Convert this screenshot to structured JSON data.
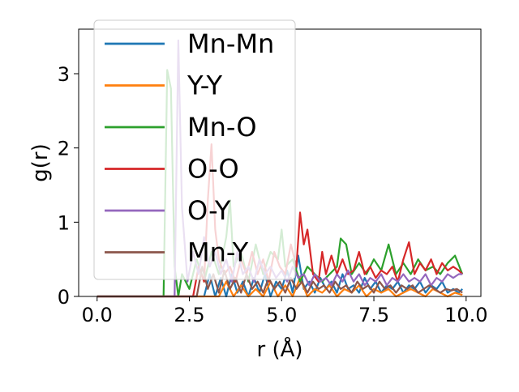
{
  "chart_data": {
    "type": "line",
    "title": "",
    "xlabel": "r (Å)",
    "ylabel": "g(r)",
    "xlim": [
      -0.5,
      10.4
    ],
    "ylim": [
      0,
      3.6
    ],
    "xticks": [
      0.0,
      2.5,
      5.0,
      7.5,
      10.0
    ],
    "xtick_labels": [
      "0.0",
      "2.5",
      "5.0",
      "7.5",
      "10.0"
    ],
    "yticks": [
      0,
      1,
      2,
      3
    ],
    "ytick_labels": [
      "0",
      "1",
      "2",
      "3"
    ],
    "grid": false,
    "legend_position": "upper-left",
    "series": [
      {
        "name": "Mn-Mn",
        "color": "#1f77b4",
        "x": [
          0,
          2.9,
          3.05,
          3.2,
          3.35,
          3.5,
          3.65,
          3.8,
          3.95,
          4.1,
          4.25,
          4.4,
          4.55,
          4.7,
          4.85,
          5.0,
          5.15,
          5.3,
          5.45,
          5.6,
          5.75,
          5.9,
          6.05,
          6.2,
          6.35,
          6.5,
          6.65,
          6.8,
          6.95,
          7.1,
          7.25,
          7.4,
          7.55,
          7.7,
          7.85,
          8.0,
          8.15,
          8.3,
          8.45,
          8.6,
          8.75,
          8.9,
          9.05,
          9.2,
          9.35,
          9.5,
          9.65,
          9.8,
          9.9
        ],
        "y": [
          0,
          0,
          0.3,
          0,
          0.25,
          0,
          0.3,
          0.05,
          0.2,
          0,
          0.25,
          0.05,
          0.3,
          0,
          0.2,
          0.1,
          0.35,
          0.05,
          0.55,
          0.1,
          0.2,
          0.05,
          0.25,
          0.1,
          0.2,
          0.05,
          0.3,
          0.1,
          0.15,
          0.05,
          0.25,
          0.1,
          0.2,
          0.05,
          0.15,
          0.1,
          0.2,
          0.05,
          0.15,
          0.1,
          0.2,
          0.05,
          0.15,
          0.1,
          0.2,
          0.05,
          0.1,
          0.05,
          0.1
        ]
      },
      {
        "name": "Y-Y",
        "color": "#ff7f0e",
        "x": [
          0,
          3.3,
          3.5,
          3.7,
          3.9,
          4.1,
          4.3,
          4.5,
          4.7,
          4.9,
          5.1,
          5.3,
          5.5,
          5.7,
          5.9,
          6.1,
          6.3,
          6.5,
          6.7,
          6.9,
          7.1,
          7.3,
          7.5,
          7.7,
          7.9,
          8.1,
          8.3,
          8.5,
          8.7,
          8.9,
          9.1,
          9.3,
          9.5,
          9.7,
          9.9
        ],
        "y": [
          0,
          0,
          0.2,
          0,
          0.15,
          0,
          0.1,
          0,
          0.2,
          0,
          0.15,
          0,
          0.25,
          0,
          0.1,
          0.05,
          0.15,
          0,
          0.1,
          0.05,
          0.15,
          0,
          0.1,
          0.05,
          0.1,
          0,
          0.05,
          0.1,
          0.05,
          0,
          0.1,
          0.05,
          0,
          0.05,
          0.02
        ]
      },
      {
        "name": "Mn-O",
        "color": "#2ca02c",
        "x": [
          0,
          1.8,
          1.9,
          2.0,
          2.1,
          2.2,
          2.3,
          2.5,
          2.7,
          2.9,
          3.1,
          3.3,
          3.5,
          3.6,
          3.7,
          3.9,
          4.1,
          4.3,
          4.5,
          4.7,
          4.9,
          5.0,
          5.1,
          5.3,
          5.5,
          5.7,
          5.9,
          6.1,
          6.3,
          6.5,
          6.6,
          6.75,
          6.9,
          7.1,
          7.3,
          7.5,
          7.7,
          7.9,
          8.1,
          8.3,
          8.5,
          8.7,
          8.9,
          9.1,
          9.3,
          9.5,
          9.7,
          9.9
        ],
        "y": [
          0,
          0,
          3.05,
          2.8,
          0.4,
          0,
          0.3,
          0.1,
          0.5,
          0.2,
          0.6,
          0.3,
          0.8,
          1.3,
          0.4,
          0.6,
          0.2,
          0.7,
          0.3,
          0.6,
          0.5,
          0.9,
          0.4,
          0.5,
          0.2,
          0.4,
          0.3,
          0.2,
          0.3,
          0.4,
          0.78,
          0.7,
          0.3,
          0.45,
          0.3,
          0.5,
          0.35,
          0.7,
          0.3,
          0.45,
          0.3,
          0.5,
          0.35,
          0.4,
          0.3,
          0.45,
          0.55,
          0.3
        ]
      },
      {
        "name": "O-O",
        "color": "#d62728",
        "x": [
          0,
          2.6,
          2.75,
          2.9,
          3.0,
          3.1,
          3.2,
          3.3,
          3.45,
          3.6,
          3.75,
          3.9,
          4.05,
          4.2,
          4.35,
          4.5,
          4.65,
          4.8,
          4.95,
          5.1,
          5.25,
          5.4,
          5.5,
          5.6,
          5.7,
          5.85,
          6.0,
          6.1,
          6.2,
          6.35,
          6.5,
          6.65,
          6.8,
          6.95,
          7.1,
          7.25,
          7.4,
          7.55,
          7.7,
          7.85,
          8.0,
          8.15,
          8.3,
          8.45,
          8.6,
          8.75,
          8.9,
          9.05,
          9.2,
          9.35,
          9.5,
          9.65,
          9.8,
          9.9
        ],
        "y": [
          0,
          0,
          0.4,
          0.2,
          1.3,
          2.05,
          0.9,
          0.5,
          0.3,
          0.4,
          0.2,
          0.5,
          0.3,
          0.6,
          0.3,
          0.5,
          0.2,
          0.6,
          0.4,
          0.3,
          0.7,
          0.4,
          1.13,
          0.7,
          0.9,
          0.3,
          0.2,
          0.6,
          0.3,
          0.55,
          0.3,
          0.5,
          0.3,
          0.35,
          0.6,
          0.3,
          0.4,
          0.25,
          0.35,
          0.3,
          0.4,
          0.2,
          0.5,
          0.73,
          0.3,
          0.45,
          0.35,
          0.5,
          0.3,
          0.45,
          0.35,
          0.4,
          0.35,
          0.3
        ]
      },
      {
        "name": "O-Y",
        "color": "#9467bd",
        "x": [
          0,
          2.1,
          2.2,
          2.3,
          2.45,
          2.6,
          2.75,
          2.9,
          3.05,
          3.2,
          3.35,
          3.5,
          3.65,
          3.8,
          3.95,
          4.1,
          4.25,
          4.4,
          4.55,
          4.7,
          4.85,
          5.0,
          5.15,
          5.3,
          5.45,
          5.6,
          5.75,
          5.9,
          6.05,
          6.2,
          6.35,
          6.5,
          6.65,
          6.8,
          6.95,
          7.1,
          7.25,
          7.4,
          7.55,
          7.7,
          7.85,
          8.0,
          8.15,
          8.3,
          8.45,
          8.6,
          8.75,
          8.9,
          9.05,
          9.2,
          9.35,
          9.5,
          9.65,
          9.8,
          9.9
        ],
        "y": [
          0,
          0,
          3.45,
          1.2,
          0.2,
          0.6,
          0.3,
          0.8,
          0.4,
          0.6,
          0.3,
          0.5,
          0.2,
          0.6,
          0.3,
          0.4,
          0.2,
          0.5,
          0.3,
          0.4,
          0.25,
          0.35,
          0.2,
          0.4,
          0.25,
          0.3,
          0.15,
          0.3,
          0.2,
          0.25,
          0.15,
          0.3,
          0.2,
          0.35,
          0.2,
          0.3,
          0.15,
          0.25,
          0.2,
          0.3,
          0.15,
          0.25,
          0.2,
          0.3,
          0.2,
          0.25,
          0.2,
          0.3,
          0.15,
          0.25,
          0.2,
          0.3,
          0.25,
          0.3,
          0.3
        ]
      },
      {
        "name": "Mn-Y",
        "color": "#8c564b",
        "x": [
          0,
          2.7,
          2.85,
          3.0,
          3.15,
          3.3,
          3.45,
          3.6,
          3.75,
          3.9,
          4.05,
          4.2,
          4.35,
          4.5,
          4.65,
          4.8,
          4.95,
          5.1,
          5.25,
          5.4,
          5.55,
          5.7,
          5.85,
          6.0,
          6.15,
          6.3,
          6.45,
          6.6,
          6.75,
          6.9,
          7.05,
          7.2,
          7.35,
          7.5,
          7.65,
          7.8,
          7.95,
          8.1,
          8.25,
          8.4,
          8.55,
          8.7,
          8.85,
          9.0,
          9.15,
          9.3,
          9.45,
          9.6,
          9.75,
          9.9
        ],
        "y": [
          0,
          0,
          0.4,
          0.1,
          0.3,
          0.05,
          0.35,
          0.1,
          0.25,
          0.05,
          0.3,
          0.1,
          0.2,
          0.05,
          0.25,
          0.1,
          0.2,
          0.05,
          0.25,
          0.1,
          0.2,
          0.05,
          0.2,
          0.1,
          0.15,
          0.05,
          0.2,
          0.1,
          0.15,
          0.05,
          0.2,
          0.1,
          0.15,
          0.05,
          0.2,
          0.1,
          0.15,
          0.05,
          0.15,
          0.1,
          0.15,
          0.05,
          0.1,
          0.15,
          0.1,
          0.05,
          0.1,
          0.08,
          0.1,
          0.05
        ]
      }
    ]
  }
}
